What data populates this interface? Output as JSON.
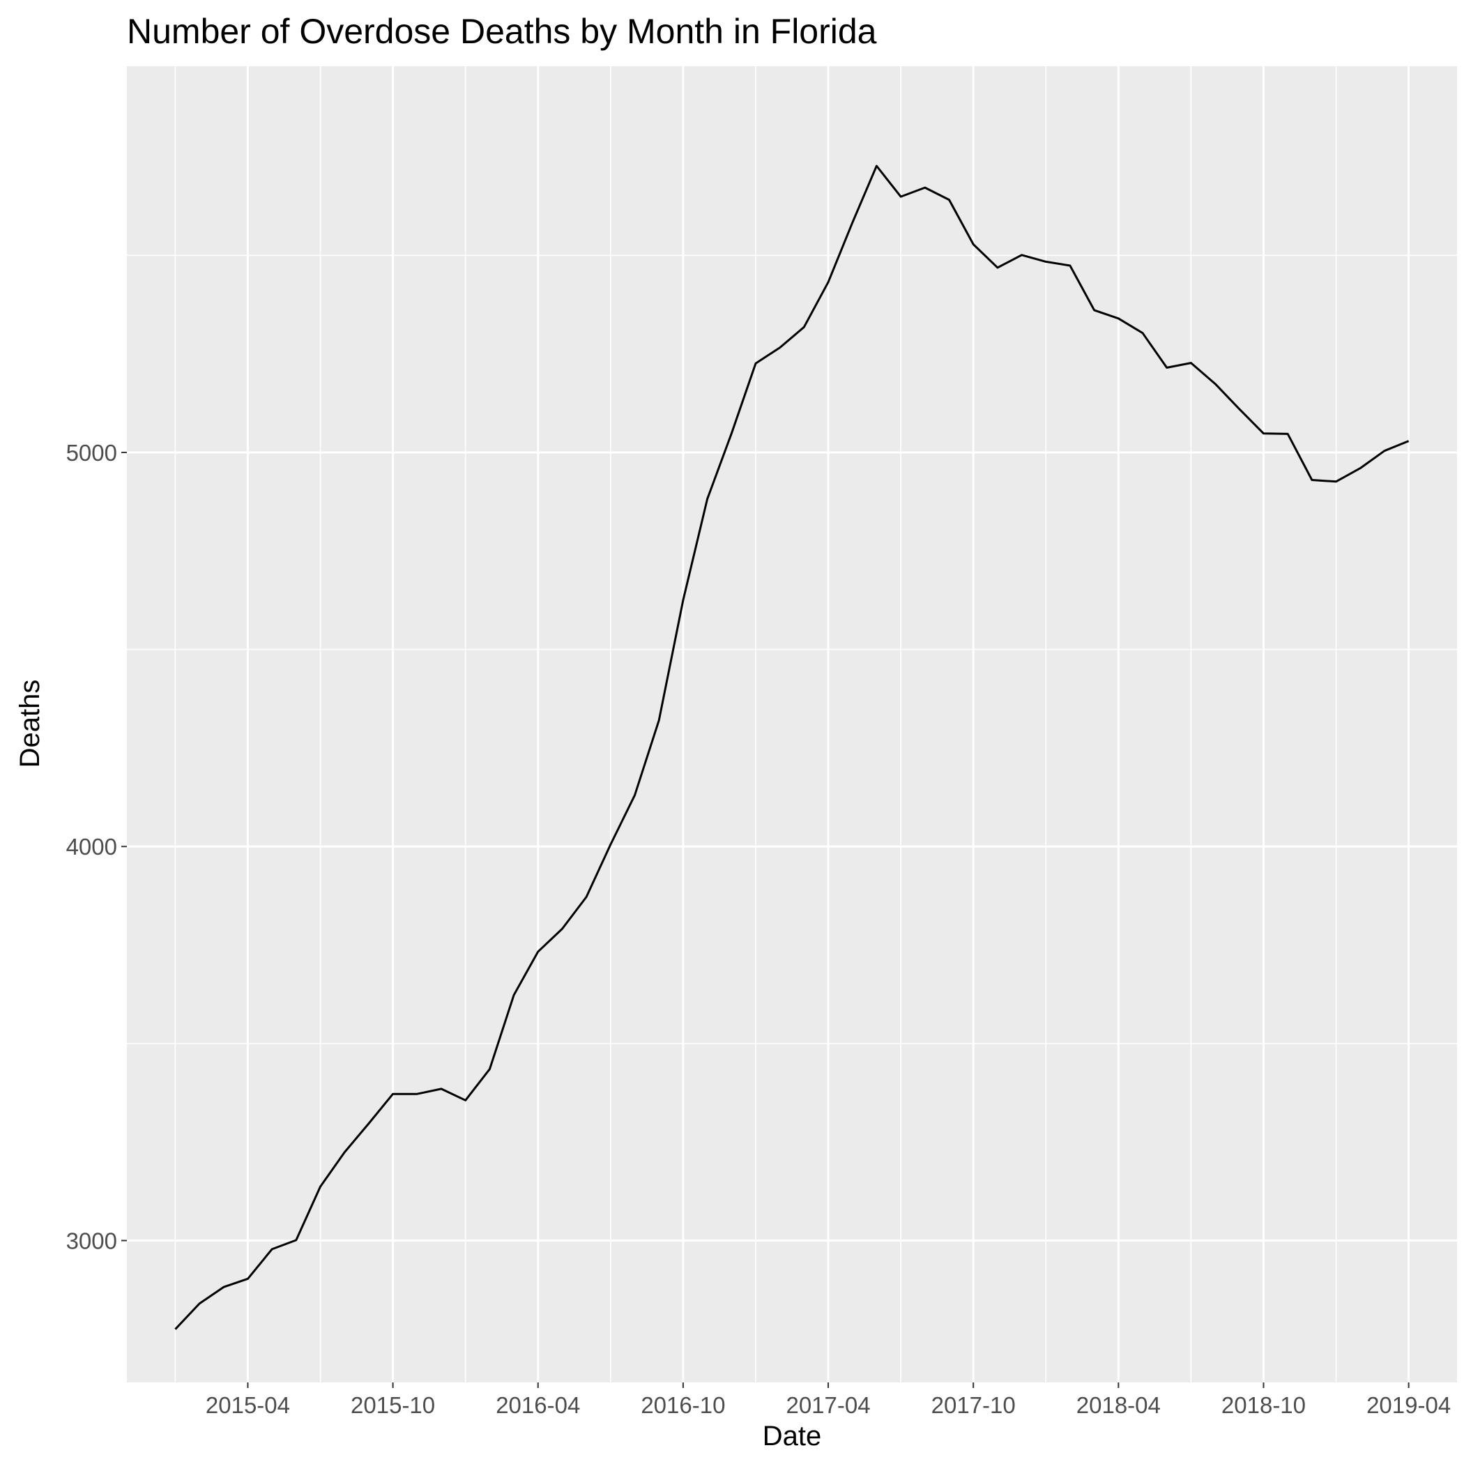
{
  "chart_data": {
    "type": "line",
    "title": "Number of Overdose Deaths by Month in Florida",
    "xlabel": "Date",
    "ylabel": "Deaths",
    "x_tick_labels": [
      "2015-04",
      "2015-10",
      "2016-04",
      "2016-10",
      "2017-04",
      "2017-10",
      "2018-04",
      "2018-10",
      "2019-04"
    ],
    "y_ticks": [
      3000,
      4000,
      5000
    ],
    "ylim": [
      2640,
      5980
    ],
    "xlim": [
      "2014-11-01",
      "2019-06-01"
    ],
    "grid": true,
    "background": "#ebebeb",
    "line_color": "#000000",
    "series": [
      {
        "x": [
          "2015-01",
          "2015-02",
          "2015-03",
          "2015-04",
          "2015-05",
          "2015-06",
          "2015-07",
          "2015-08",
          "2015-09",
          "2015-10",
          "2015-11",
          "2015-12",
          "2016-01",
          "2016-02",
          "2016-03",
          "2016-04",
          "2016-05",
          "2016-06",
          "2016-07",
          "2016-08",
          "2016-09",
          "2016-10",
          "2016-11",
          "2016-12",
          "2017-01",
          "2017-02",
          "2017-03",
          "2017-04",
          "2017-05",
          "2017-06",
          "2017-07",
          "2017-08",
          "2017-09",
          "2017-10",
          "2017-11",
          "2017-12",
          "2018-01",
          "2018-02",
          "2018-03",
          "2018-04",
          "2018-05",
          "2018-06",
          "2018-07",
          "2018-08",
          "2018-09",
          "2018-10",
          "2018-11",
          "2018-12",
          "2019-01",
          "2019-02",
          "2019-03",
          "2019-04"
        ],
        "values": [
          2775,
          2840,
          2882,
          2903,
          2978,
          3001,
          3137,
          3224,
          3297,
          3372,
          3372,
          3385,
          3356,
          3435,
          3623,
          3733,
          3791,
          3872,
          4005,
          4130,
          4320,
          4625,
          4882,
          5048,
          5226,
          5266,
          5318,
          5432,
          5583,
          5727,
          5649,
          5672,
          5641,
          5528,
          5469,
          5501,
          5484,
          5474,
          5361,
          5340,
          5303,
          5215,
          5227,
          5174,
          5110,
          5048,
          5047,
          4930,
          4926,
          4960,
          5004,
          5029
        ]
      }
    ]
  }
}
